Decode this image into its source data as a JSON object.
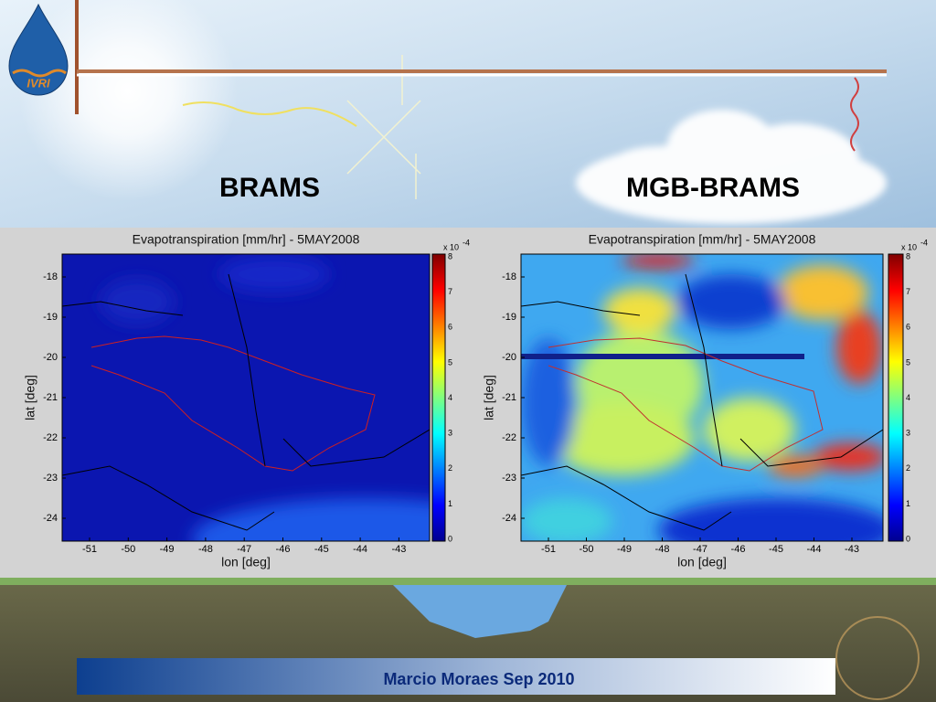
{
  "logo": "IVRI",
  "header": {
    "left_title": "BRAMS",
    "right_title": "MGB-BRAMS"
  },
  "panels": [
    {
      "title": "Evapotranspiration [mm/hr] - 5MAY2008",
      "xlabel": "lon [deg]",
      "ylabel": "lat [deg]",
      "xticks": [
        -51,
        -50,
        -49,
        -48,
        -47,
        -46,
        -45,
        -44,
        -43
      ],
      "yticks": [
        -18,
        -19,
        -20,
        -21,
        -22,
        -23,
        -24
      ],
      "colorbar_ticks": [
        0,
        1,
        2,
        3,
        4,
        5,
        6,
        7,
        8
      ],
      "colorbar_scale": "x 10",
      "colorbar_exponent": "-4"
    },
    {
      "title": "Evapotranspiration [mm/hr] - 5MAY2008",
      "xlabel": "lon [deg]",
      "ylabel": "lat [deg]",
      "xticks": [
        -51,
        -50,
        -49,
        -48,
        -47,
        -46,
        -45,
        -44,
        -43
      ],
      "yticks": [
        -18,
        -19,
        -20,
        -21,
        -22,
        -23,
        -24
      ],
      "colorbar_ticks": [
        0,
        1,
        2,
        3,
        4,
        5,
        6,
        7,
        8
      ],
      "colorbar_scale": "x 10",
      "colorbar_exponent": "-4"
    }
  ],
  "footer": "Marcio Moraes Sep 2010"
}
